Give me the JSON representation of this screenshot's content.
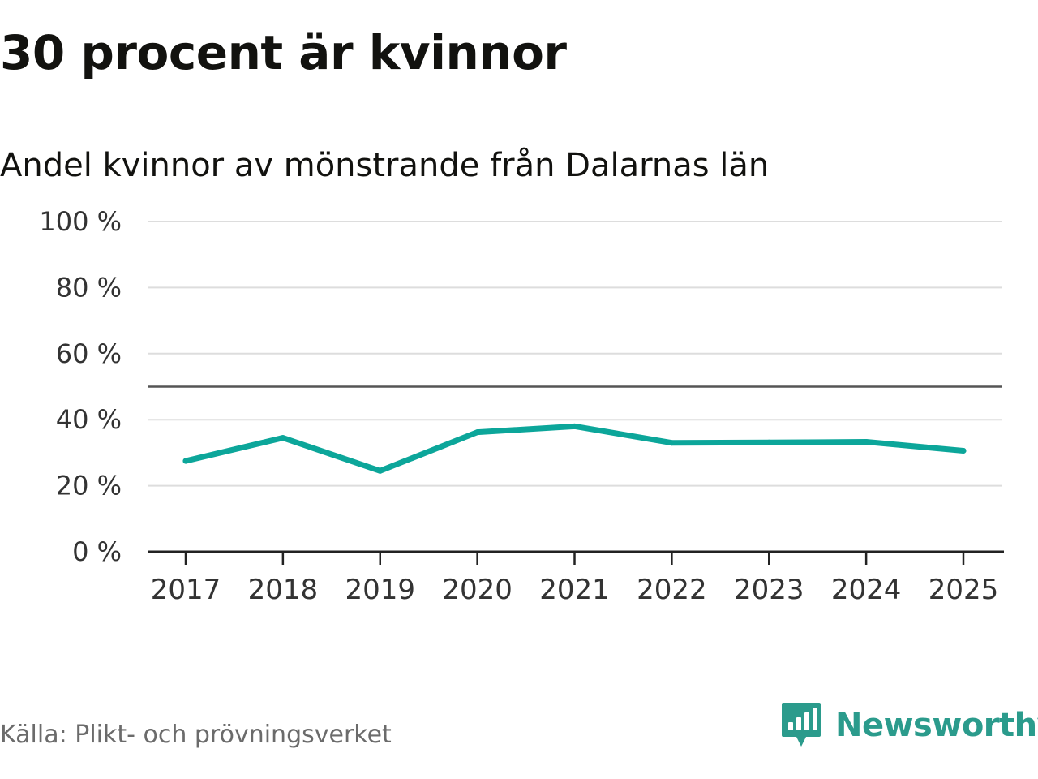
{
  "title": "30 procent är kvinnor",
  "subtitle": "Andel kvinnor av mönstrande från Dalarnas län",
  "source": "Källa: Plikt- och prövningsverket",
  "brand": {
    "name": "Newsworthy",
    "icon": "newsworthy-logo-icon",
    "color": "#2b9b8c"
  },
  "colors": {
    "line": "#0ca69a",
    "grid": "#dddddd",
    "reference": "#555555",
    "axis": "#222222"
  },
  "chart_data": {
    "type": "line",
    "title": "Andel kvinnor av mönstrande från Dalarnas län",
    "xlabel": "",
    "ylabel": "",
    "categories": [
      "2017",
      "2018",
      "2019",
      "2020",
      "2021",
      "2022",
      "2023",
      "2024",
      "2025"
    ],
    "series": [
      {
        "name": "Andel kvinnor",
        "values": [
          27.5,
          34.5,
          24.5,
          36.2,
          38.0,
          33.0,
          33.1,
          33.3,
          30.6
        ]
      }
    ],
    "ylim": [
      0,
      100
    ],
    "yticks": [
      0,
      20,
      40,
      60,
      80,
      100
    ],
    "ytick_labels": [
      "0 %",
      "20 %",
      "40 %",
      "60 %",
      "80 %",
      "100 %"
    ],
    "reference_line": 50,
    "grid": true
  }
}
